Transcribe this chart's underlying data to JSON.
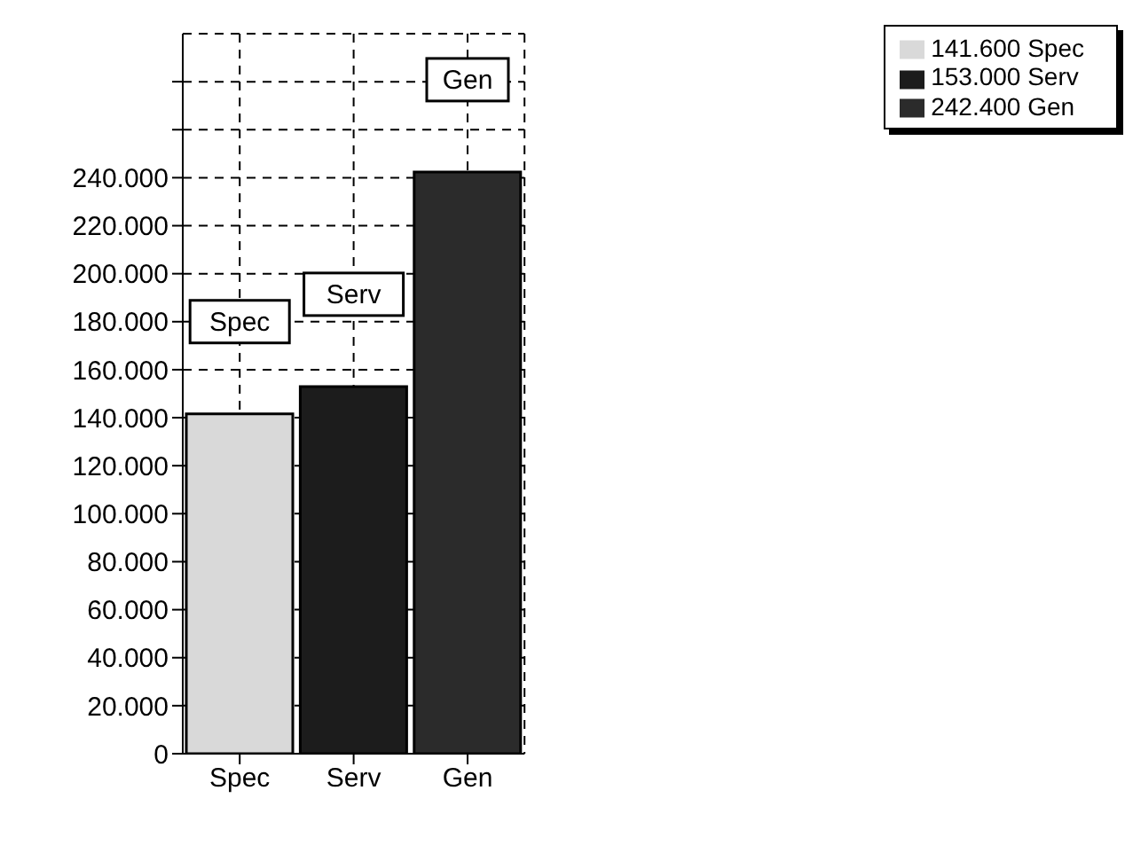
{
  "chart_data": {
    "type": "bar",
    "categories": [
      "Spec",
      "Serv",
      "Gen"
    ],
    "stacked": true,
    "series": [
      {
        "name": "141.600 Spec",
        "color": "#d9d9d9",
        "values": [
          141600,
          null,
          null
        ]
      },
      {
        "name": "153.000 Serv",
        "color": "#1c1c1c",
        "values": [
          null,
          153000,
          null
        ]
      },
      {
        "name": "242.400 Gen",
        "color": "#2b2b2b",
        "values": [
          null,
          null,
          242400
        ]
      }
    ],
    "ylim": [
      0,
      300000
    ],
    "yticks": [
      0,
      {
        "value": 20000,
        "label": "20.000"
      },
      {
        "value": 40000,
        "label": "40.000"
      },
      {
        "value": 60000,
        "label": "60.000"
      },
      {
        "value": 80000,
        "label": "80.000"
      },
      {
        "value": 100000,
        "label": "100.000"
      },
      {
        "value": 120000,
        "label": "120.000"
      },
      {
        "value": 140000,
        "label": "140.000"
      },
      {
        "value": 160000,
        "label": "160.000"
      },
      {
        "value": 180000,
        "label": "180.000"
      },
      {
        "value": 200000,
        "label": "200.000"
      },
      {
        "value": 220000,
        "label": "220.000"
      },
      {
        "value": 240000,
        "label": "240.000"
      },
      {
        "value": 260000,
        "label": null
      },
      {
        "value": 280000,
        "label": null
      }
    ],
    "annotations": [
      "Spec",
      "Serv",
      "Gen"
    ],
    "grid": true,
    "legend": "top right"
  }
}
